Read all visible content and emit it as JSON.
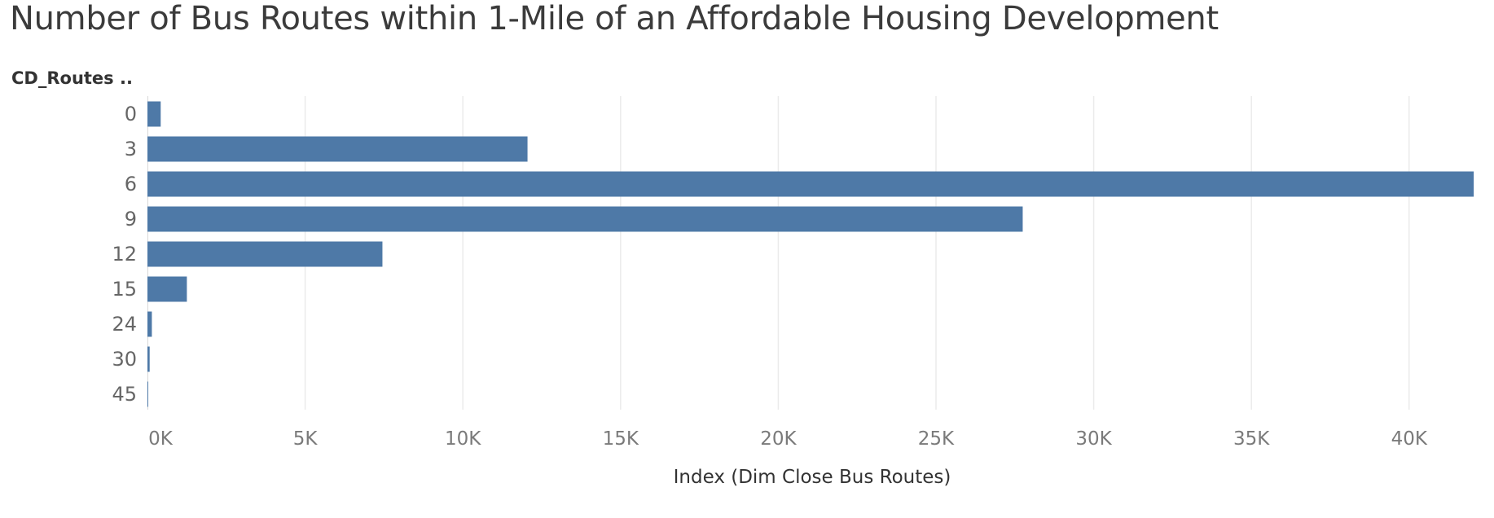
{
  "chart_data": {
    "type": "bar",
    "orientation": "horizontal",
    "title": "Number of Bus Routes within 1-Mile of an Affordable Housing Development",
    "row_header": "CD_Routes ..",
    "xlabel": "Index (Dim Close Bus Routes)",
    "categories": [
      "0",
      "3",
      "6",
      "9",
      "12",
      "15",
      "24",
      "30",
      "45"
    ],
    "values": [
      420,
      12050,
      42050,
      27750,
      7450,
      1250,
      140,
      70,
      15
    ],
    "xlim": [
      0,
      42150
    ],
    "xticks": [
      0,
      5000,
      10000,
      15000,
      20000,
      25000,
      30000,
      35000,
      40000
    ],
    "xtick_labels": [
      "0K",
      "5K",
      "10K",
      "15K",
      "20K",
      "25K",
      "30K",
      "35K",
      "40K"
    ],
    "grid": true,
    "bar_color": "#4e79a7"
  }
}
